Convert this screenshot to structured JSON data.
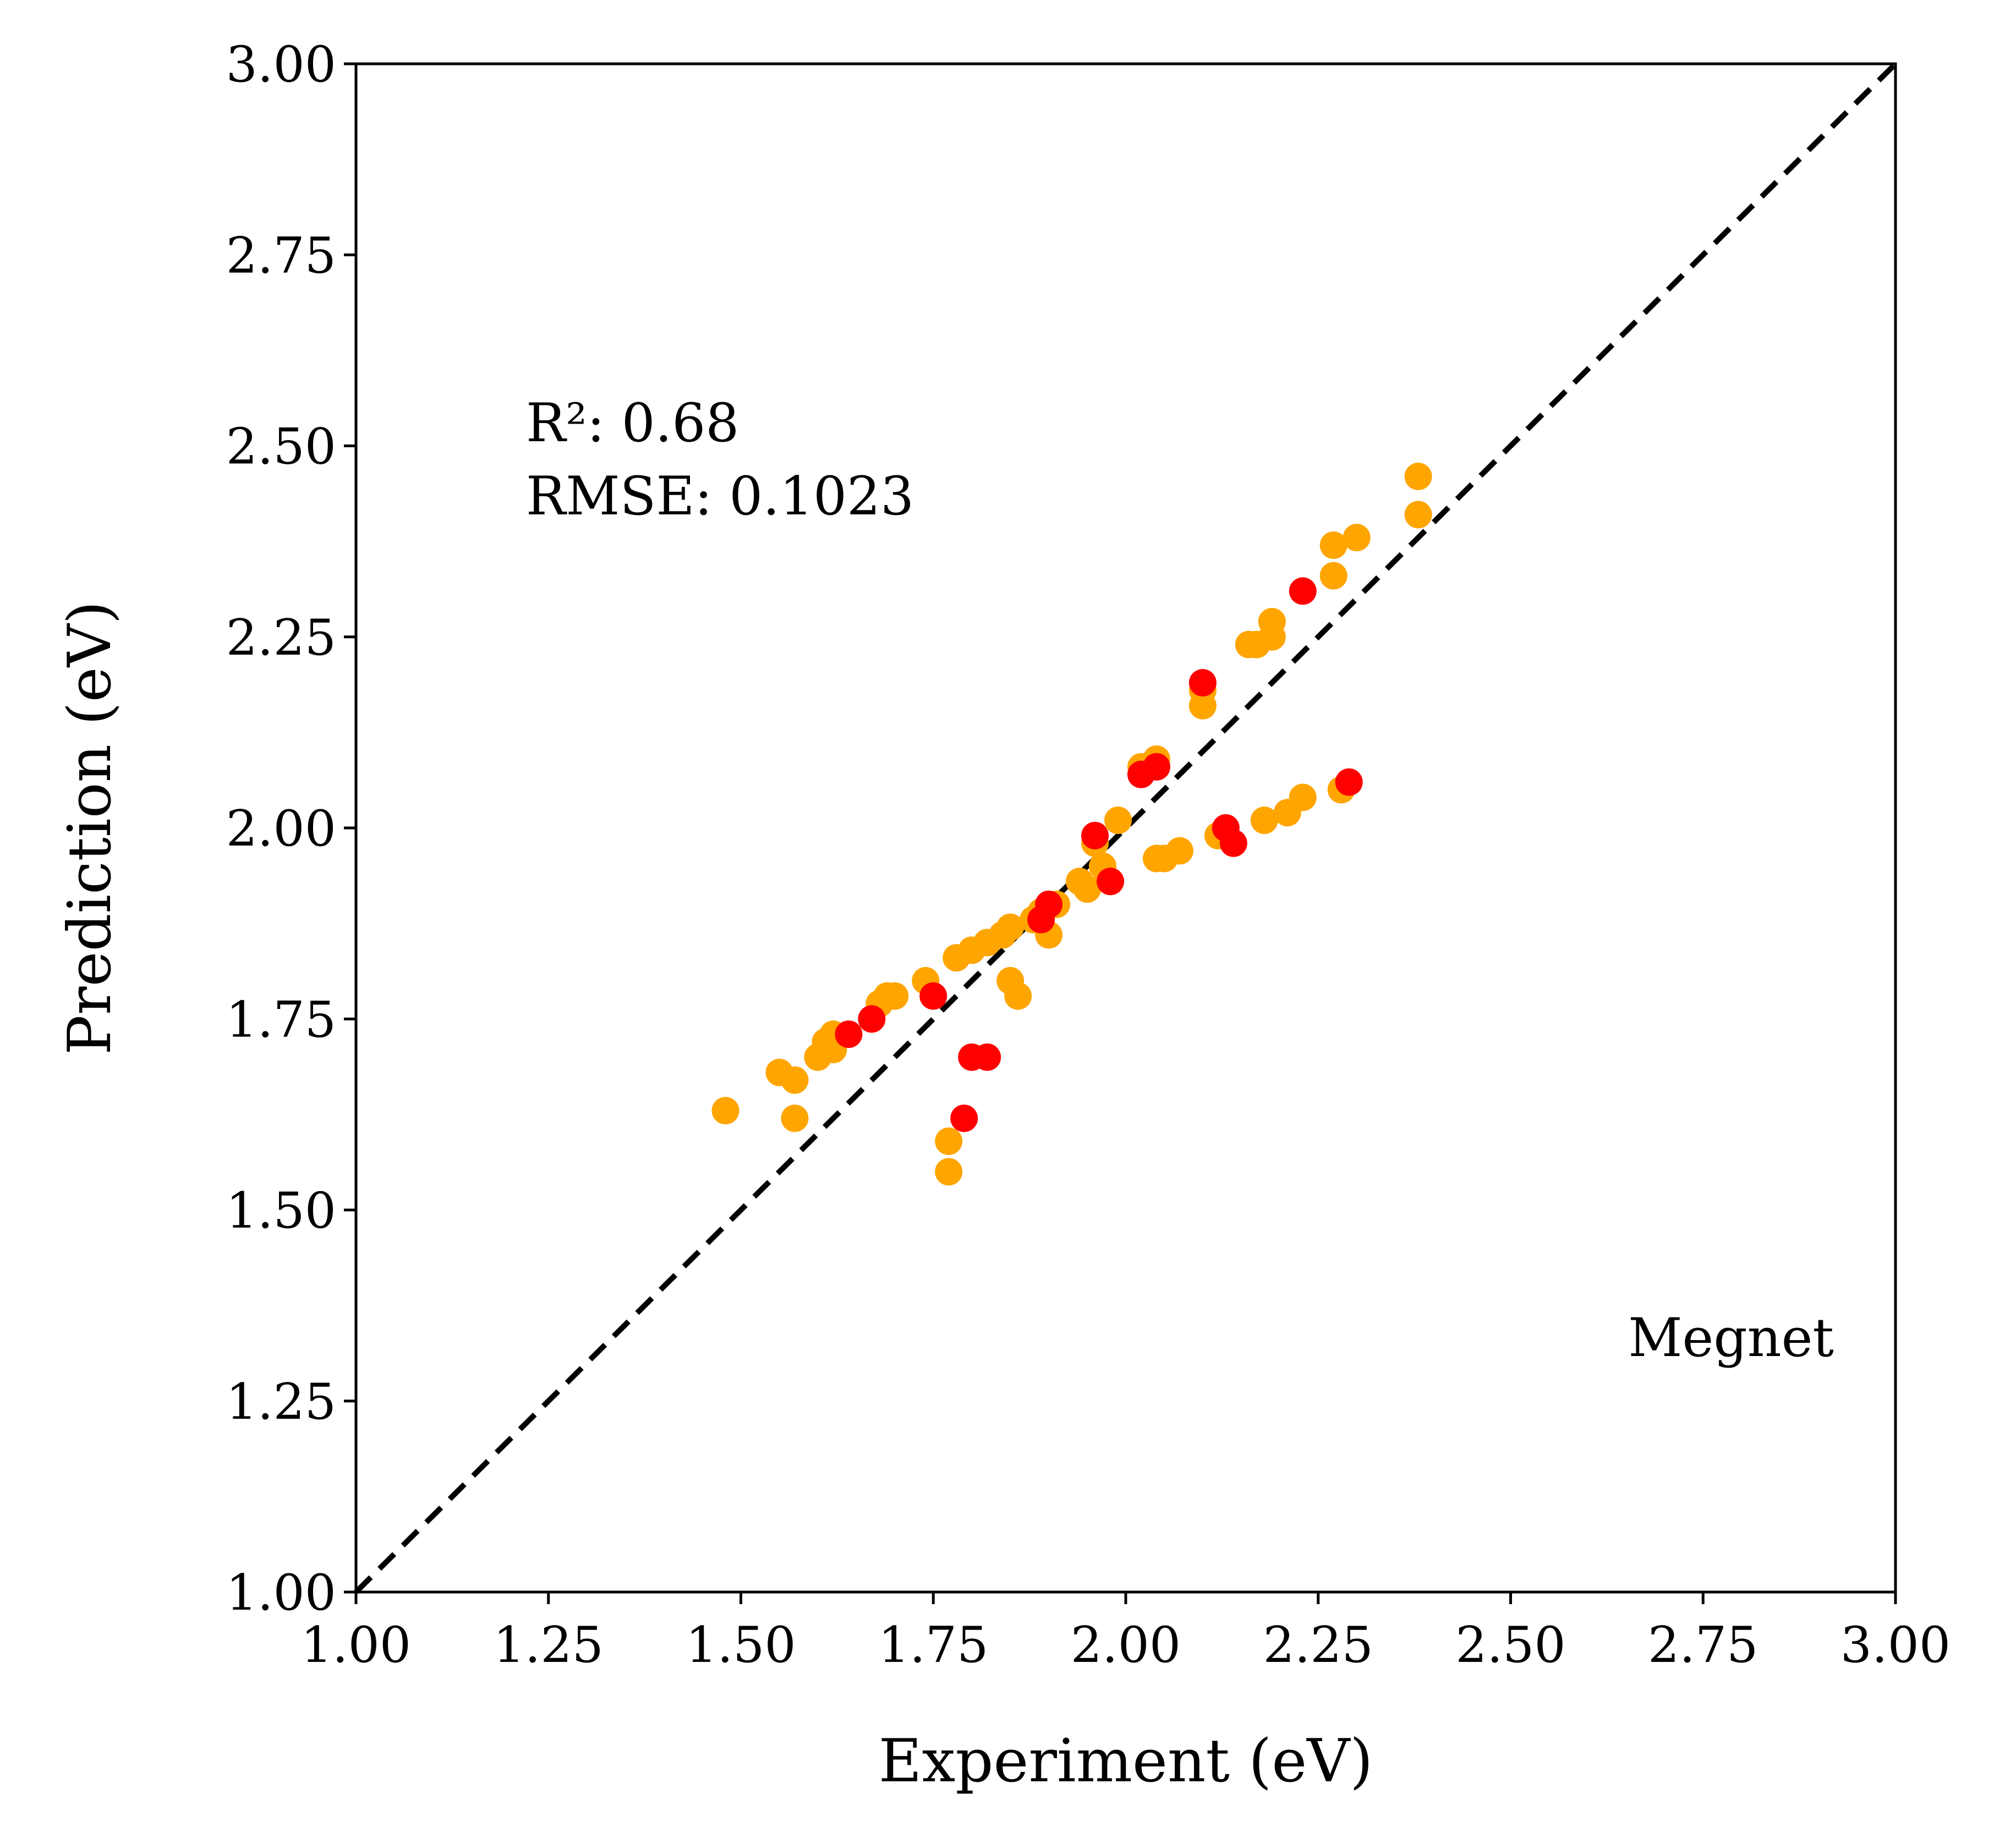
{
  "chart_data": {
    "type": "scatter",
    "xlabel": "Experiment (eV)",
    "ylabel": "Prediction (eV)",
    "xlim": [
      1.0,
      3.0
    ],
    "ylim": [
      1.0,
      3.0
    ],
    "xticks": [
      "1.00",
      "1.25",
      "1.50",
      "1.75",
      "2.00",
      "2.25",
      "2.50",
      "2.75",
      "3.00"
    ],
    "yticks": [
      "1.00",
      "1.25",
      "1.50",
      "1.75",
      "2.00",
      "2.25",
      "2.50",
      "2.75",
      "3.00"
    ],
    "grid": false,
    "annotations": {
      "r2": "R²: 0.68",
      "rmse": "RMSE: 0.1023",
      "model": "Megnet"
    },
    "reference_line": {
      "style": "dashed",
      "color": "#000000",
      "from": [
        1.0,
        1.0
      ],
      "to": [
        3.0,
        3.0
      ]
    },
    "series": [
      {
        "color": "#FFA500",
        "points": [
          [
            1.48,
            1.63
          ],
          [
            1.55,
            1.68
          ],
          [
            1.57,
            1.67
          ],
          [
            1.57,
            1.62
          ],
          [
            1.6,
            1.7
          ],
          [
            1.61,
            1.72
          ],
          [
            1.62,
            1.73
          ],
          [
            1.62,
            1.71
          ],
          [
            1.68,
            1.77
          ],
          [
            1.69,
            1.78
          ],
          [
            1.7,
            1.78
          ],
          [
            1.74,
            1.8
          ],
          [
            1.77,
            1.59
          ],
          [
            1.77,
            1.55
          ],
          [
            1.78,
            1.83
          ],
          [
            1.8,
            1.84
          ],
          [
            1.82,
            1.85
          ],
          [
            1.84,
            1.86
          ],
          [
            1.85,
            1.87
          ],
          [
            1.85,
            1.8
          ],
          [
            1.86,
            1.78
          ],
          [
            1.88,
            1.88
          ],
          [
            1.89,
            1.89
          ],
          [
            1.9,
            1.86
          ],
          [
            1.91,
            1.9
          ],
          [
            1.94,
            1.93
          ],
          [
            1.95,
            1.92
          ],
          [
            1.96,
            1.98
          ],
          [
            1.97,
            1.95
          ],
          [
            1.98,
            1.93
          ],
          [
            1.99,
            2.01
          ],
          [
            2.02,
            2.08
          ],
          [
            2.04,
            2.09
          ],
          [
            2.04,
            1.96
          ],
          [
            2.05,
            1.96
          ],
          [
            2.07,
            1.97
          ],
          [
            2.1,
            2.18
          ],
          [
            2.1,
            2.16
          ],
          [
            2.12,
            1.99
          ],
          [
            2.16,
            2.24
          ],
          [
            2.17,
            2.24
          ],
          [
            2.18,
            2.01
          ],
          [
            2.19,
            2.27
          ],
          [
            2.19,
            2.25
          ],
          [
            2.21,
            2.02
          ],
          [
            2.23,
            2.04
          ],
          [
            2.27,
            2.37
          ],
          [
            2.27,
            2.33
          ],
          [
            2.28,
            2.05
          ],
          [
            2.3,
            2.38
          ],
          [
            2.38,
            2.46
          ],
          [
            2.38,
            2.41
          ]
        ]
      },
      {
        "color": "#FF0000",
        "points": [
          [
            1.64,
            1.73
          ],
          [
            1.67,
            1.75
          ],
          [
            1.75,
            1.78
          ],
          [
            1.79,
            1.62
          ],
          [
            1.8,
            1.7
          ],
          [
            1.82,
            1.7
          ],
          [
            1.89,
            1.88
          ],
          [
            1.9,
            1.9
          ],
          [
            1.96,
            1.99
          ],
          [
            1.98,
            1.93
          ],
          [
            2.02,
            2.07
          ],
          [
            2.04,
            2.08
          ],
          [
            2.1,
            2.19
          ],
          [
            2.13,
            2.0
          ],
          [
            2.14,
            1.98
          ],
          [
            2.23,
            2.31
          ],
          [
            2.29,
            2.06
          ]
        ]
      }
    ]
  }
}
